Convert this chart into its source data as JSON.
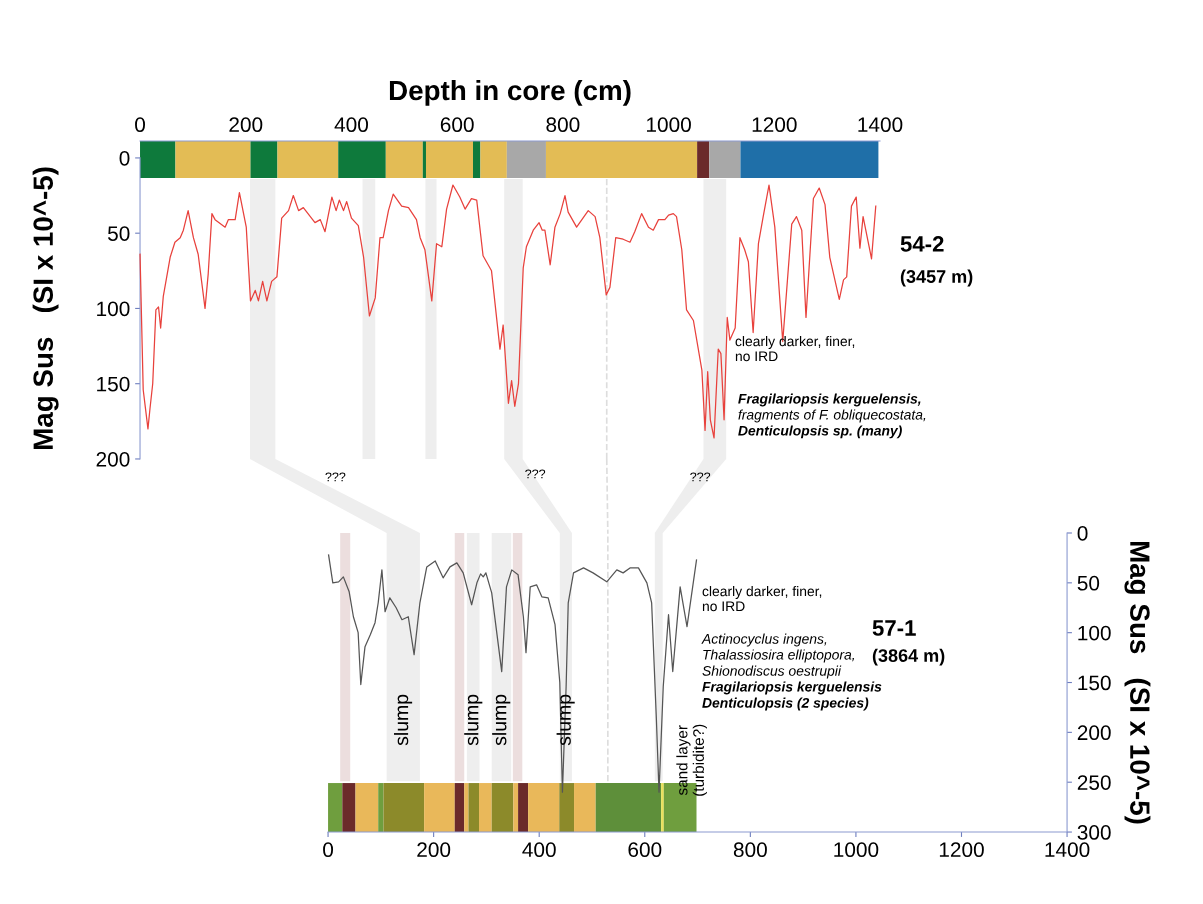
{
  "chart_data": [
    {
      "type": "bar",
      "orientation": "horizontal",
      "stacked": true,
      "xlabel": "Depth in core (cm)",
      "categories": [
        null
      ],
      "xlim": [
        0,
        1400
      ],
      "xticks": [
        0,
        200,
        400,
        600,
        800,
        1000,
        1200,
        1400
      ],
      "tick_labels": "x",
      "series": [
        {
          "color": "#0e7a3c",
          "values": [
            67
          ]
        },
        {
          "color": "#e3bc55",
          "values": [
            142
          ]
        },
        {
          "color": "#0e7a3c",
          "values": [
            51
          ]
        },
        {
          "color": "#e3bc55",
          "values": [
            115
          ]
        },
        {
          "color": "#0e7a3c",
          "values": [
            90
          ]
        },
        {
          "color": "#e3bc55",
          "values": [
            70
          ]
        },
        {
          "color": "#0e7a3c",
          "values": [
            6
          ]
        },
        {
          "color": "#e3bc55",
          "values": [
            89
          ]
        },
        {
          "color": "#0e7a3c",
          "values": [
            14
          ]
        },
        {
          "color": "#e3bc55",
          "values": [
            50
          ]
        },
        {
          "color": "#a8a8a8",
          "values": [
            74
          ]
        },
        {
          "color": "#e3bc55",
          "values": [
            286
          ]
        },
        {
          "color": "#6b2a2a",
          "values": [
            23
          ]
        },
        {
          "color": "#a8a8a8",
          "values": [
            59
          ]
        },
        {
          "color": "#1f6fa8",
          "values": [
            261
          ]
        }
      ]
    },
    {
      "type": "line",
      "ylabel": "Mag Sus   (SI x 10^-5)",
      "xlim": [
        0,
        1400
      ],
      "ylim": [
        200,
        0
      ],
      "yticks": [
        0,
        50,
        100,
        150,
        200
      ],
      "tick_labels": "y",
      "series": [
        {
          "color": "#e8413c",
          "x": [
            0,
            6,
            15,
            19,
            24,
            30,
            35,
            39,
            44,
            57,
            66,
            76,
            82,
            91,
            101,
            110,
            123,
            129,
            136,
            142,
            161,
            167,
            180,
            188,
            201,
            209,
            218,
            224,
            232,
            240,
            249,
            259,
            268,
            281,
            290,
            300,
            309,
            331,
            341,
            350,
            363,
            371,
            377,
            385,
            391,
            400,
            413,
            423,
            434,
            445,
            454,
            460,
            470,
            479,
            495,
            508,
            523,
            530,
            539,
            552,
            561,
            571,
            580,
            592,
            605,
            615,
            627,
            637,
            649,
            665,
            681,
            687,
            697,
            703,
            709,
            716,
            725,
            731,
            744,
            755,
            761,
            766,
            776,
            785,
            795,
            804,
            810,
            826,
            848,
            861,
            870,
            882,
            889,
            900,
            914,
            927,
            936,
            949,
            962,
            971,
            981,
            993,
            1000,
            1009,
            1015,
            1025,
            1034,
            1047,
            1063,
            1069,
            1074,
            1079,
            1086,
            1094,
            1099,
            1105,
            1111,
            1116,
            1126,
            1135,
            1144,
            1151,
            1160,
            1170,
            1179,
            1190,
            1201,
            1216,
            1233,
            1242,
            1252,
            1260,
            1274,
            1285,
            1296,
            1305,
            1323,
            1331,
            1337,
            1346,
            1355,
            1362,
            1368,
            1384,
            1392
          ],
          "values": [
            64,
            154,
            180,
            166,
            150,
            101,
            99,
            113,
            92,
            66,
            56,
            53,
            48,
            35,
            53,
            64,
            100,
            77,
            37,
            41,
            46,
            41,
            41,
            23,
            46,
            95,
            88,
            95,
            82,
            95,
            82,
            79,
            40,
            35,
            25,
            35,
            33,
            43,
            41,
            49,
            26,
            35,
            28,
            35,
            29,
            40,
            45,
            66,
            105,
            93,
            53,
            53,
            35,
            24,
            32,
            33,
            41,
            53,
            61,
            95,
            57,
            59,
            34,
            18,
            26,
            34,
            27,
            28,
            65,
            75,
            127,
            111,
            163,
            148,
            165,
            150,
            73,
            59,
            48,
            43,
            48,
            48,
            71,
            46,
            37,
            25,
            36,
            46,
            35,
            39,
            53,
            91,
            86,
            53,
            54,
            56,
            49,
            37,
            46,
            48,
            41,
            41,
            38,
            37,
            39,
            61,
            101,
            108,
            141,
            181,
            142,
            174,
            186,
            127,
            130,
            174,
            106,
            121,
            113,
            53,
            61,
            69,
            116,
            57,
            39,
            18,
            46,
            122,
            44,
            39,
            48,
            106,
            27,
            20,
            31,
            66,
            94,
            81,
            79,
            32,
            26,
            60,
            39,
            67,
            32
          ]
        }
      ],
      "bands": [
        {
          "axis": "x",
          "from": 208,
          "to": 256,
          "color": "#eeeeee"
        },
        {
          "axis": "x",
          "from": 421,
          "to": 445,
          "color": "#eeeeee"
        },
        {
          "axis": "x",
          "from": 540,
          "to": 561,
          "color": "#eeeeee"
        },
        {
          "axis": "x",
          "from": 689,
          "to": 724,
          "color": "#eeeeee"
        },
        {
          "axis": "x",
          "from": 1066,
          "to": 1109,
          "color": "#eeeeee"
        }
      ],
      "ref_lines": [
        {
          "axis": "x",
          "value": 883,
          "color": "#dddddd",
          "line_style": "dashed"
        }
      ],
      "annotations": [
        "54-2",
        "(3457 m)",
        "clearly darker, finer,\nno IRD",
        "Fragilariopsis kerguelensis,",
        "fragments of F. obliquecostata,",
        "Denticulopsis sp. (many)",
        "???",
        "???",
        "???"
      ]
    },
    {
      "type": "line",
      "ylabel": "Mag Sus   (SI x 10^-5)",
      "xlim": [
        0,
        1400
      ],
      "xticks": [
        0,
        200,
        400,
        600,
        800,
        1000,
        1200,
        1400
      ],
      "ylim": [
        300,
        0
      ],
      "yticks": [
        0,
        50,
        100,
        150,
        200,
        250,
        300
      ],
      "series": [
        {
          "color": "#555555",
          "x": [
            1,
            9,
            20,
            29,
            40,
            48,
            57,
            62,
            70,
            80,
            89,
            95,
            102,
            108,
            117,
            129,
            140,
            152,
            163,
            174,
            187,
            203,
            218,
            231,
            244,
            256,
            272,
            282,
            289,
            294,
            299,
            310,
            329,
            338,
            348,
            360,
            370,
            375,
            383,
            395,
            405,
            417,
            430,
            439,
            444,
            451,
            455,
            465,
            484,
            502,
            528,
            547,
            559,
            572,
            588,
            604,
            613,
            622,
            627,
            635,
            645,
            653,
            667,
            680,
            698
          ],
          "values": [
            22,
            50,
            49,
            44,
            59,
            84,
            100,
            152,
            114,
            102,
            90,
            70,
            37,
            79,
            65,
            75,
            87,
            84,
            122,
            70,
            34,
            28,
            45,
            34,
            30,
            40,
            72,
            50,
            41,
            44,
            40,
            60,
            139,
            54,
            37,
            42,
            84,
            120,
            54,
            52,
            64,
            65,
            92,
            150,
            260,
            154,
            70,
            40,
            35,
            40,
            49,
            37,
            40,
            35,
            35,
            50,
            70,
            187,
            260,
            154,
            82,
            139,
            54,
            94,
            27
          ]
        }
      ],
      "bands": [
        {
          "axis": "x",
          "from": 111,
          "to": 174,
          "color": "#eeeeee"
        },
        {
          "axis": "x",
          "from": 263,
          "to": 287,
          "color": "#eeeeee"
        },
        {
          "axis": "x",
          "from": 310,
          "to": 347,
          "color": "#eeeeee"
        },
        {
          "axis": "x",
          "from": 439,
          "to": 462,
          "color": "#eeeeee"
        },
        {
          "axis": "x",
          "from": 619,
          "to": 634,
          "color": "#eeeeee"
        },
        {
          "axis": "x",
          "from": 23,
          "to": 42,
          "color": "#ecdede"
        },
        {
          "axis": "x",
          "from": 240,
          "to": 258,
          "color": "#ecdede"
        },
        {
          "axis": "x",
          "from": 350,
          "to": 368,
          "color": "#ecdede"
        }
      ],
      "ref_lines": [
        {
          "axis": "x",
          "value": 530,
          "color": "#dddddd",
          "line_style": "dashed"
        }
      ],
      "annotations": [
        "57-1",
        "(3864 m)",
        "clearly darker, finer,\nno IRD",
        "Actinocyclus ingens,",
        "Thalassiosira elliptopora,",
        "Shionodiscus oestrupii",
        "Fragilariopsis kerguelensis",
        "Denticulopsis (2 species)",
        "slump",
        "slump",
        "slump",
        "slump",
        "sand layer\n(turbidite?)"
      ]
    },
    {
      "type": "bar",
      "orientation": "horizontal",
      "stacked": true,
      "categories": [
        null
      ],
      "xlim": [
        0,
        1400
      ],
      "tick_labels": false,
      "series": [
        {
          "color": "#6f9e3e",
          "values": [
            27
          ]
        },
        {
          "color": "#6b2a2a",
          "values": [
            25
          ]
        },
        {
          "color": "#e9b85a",
          "values": [
            43
          ]
        },
        {
          "color": "#6f9e3e",
          "values": [
            10
          ]
        },
        {
          "color": "#8c8a2a",
          "values": [
            77
          ]
        },
        {
          "color": "#e9b85a",
          "values": [
            58
          ]
        },
        {
          "color": "#6b2a2a",
          "values": [
            18
          ]
        },
        {
          "color": "#e9b85a",
          "values": [
            8
          ]
        },
        {
          "color": "#8c8a2a",
          "values": [
            20
          ]
        },
        {
          "color": "#e9b85a",
          "values": [
            24
          ]
        },
        {
          "color": "#8c8a2a",
          "values": [
            41
          ]
        },
        {
          "color": "#e9b85a",
          "values": [
            9
          ]
        },
        {
          "color": "#6b2a2a",
          "values": [
            19
          ]
        },
        {
          "color": "#e9b85a",
          "values": [
            59
          ]
        },
        {
          "color": "#8c8a2a",
          "values": [
            28
          ]
        },
        {
          "color": "#e9b85a",
          "values": [
            41
          ]
        },
        {
          "color": "#5e8f3a",
          "values": [
            124
          ]
        },
        {
          "color": "#e9e05a",
          "values": [
            5
          ]
        },
        {
          "color": "#6f9e3e",
          "values": [
            62
          ]
        }
      ]
    }
  ]
}
